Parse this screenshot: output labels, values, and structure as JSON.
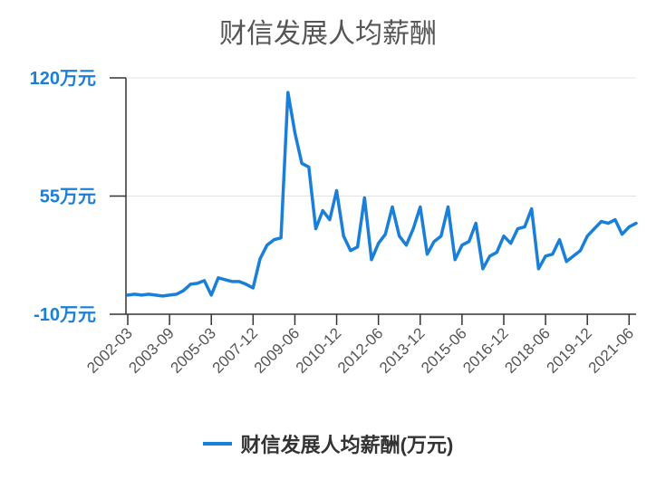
{
  "chart_data": {
    "type": "line",
    "title": "财信发展人均薪酬",
    "yticks": [
      "120万元",
      "55万元",
      "-10万元"
    ],
    "ytick_values": [
      120,
      55,
      -10
    ],
    "ylim": [
      -10,
      120
    ],
    "xtick_labels": [
      "2002-03",
      "2003-09",
      "2005-03",
      "2007-12",
      "2009-06",
      "2010-12",
      "2012-06",
      "2013-12",
      "2015-06",
      "2016-12",
      "2018-06",
      "2019-12",
      "2021-06"
    ],
    "xtick_index": [
      0,
      6,
      12,
      18,
      24,
      30,
      36,
      42,
      48,
      54,
      60,
      66,
      72
    ],
    "grid": true,
    "legend_position": "bottom",
    "color": "#1a7fd8",
    "series": [
      {
        "name": "财信发展人均薪酬(万元)",
        "values": [
          0.5,
          1,
          0.5,
          1,
          0.5,
          0,
          0.5,
          1,
          3,
          6.5,
          7,
          8.5,
          0.5,
          10,
          9,
          8,
          8,
          6.5,
          4.5,
          20.5,
          28,
          31,
          32,
          112,
          90,
          73,
          71,
          37,
          47,
          42,
          58,
          33,
          25,
          27,
          54,
          20,
          29,
          34,
          49,
          33,
          28,
          37,
          49,
          23,
          30,
          33,
          49,
          20,
          28,
          30,
          40,
          15,
          22,
          24,
          33,
          29,
          37,
          38,
          48,
          15,
          22,
          23,
          31,
          19,
          22,
          25,
          33,
          37,
          41,
          40,
          42,
          34,
          38,
          40
        ]
      }
    ]
  }
}
